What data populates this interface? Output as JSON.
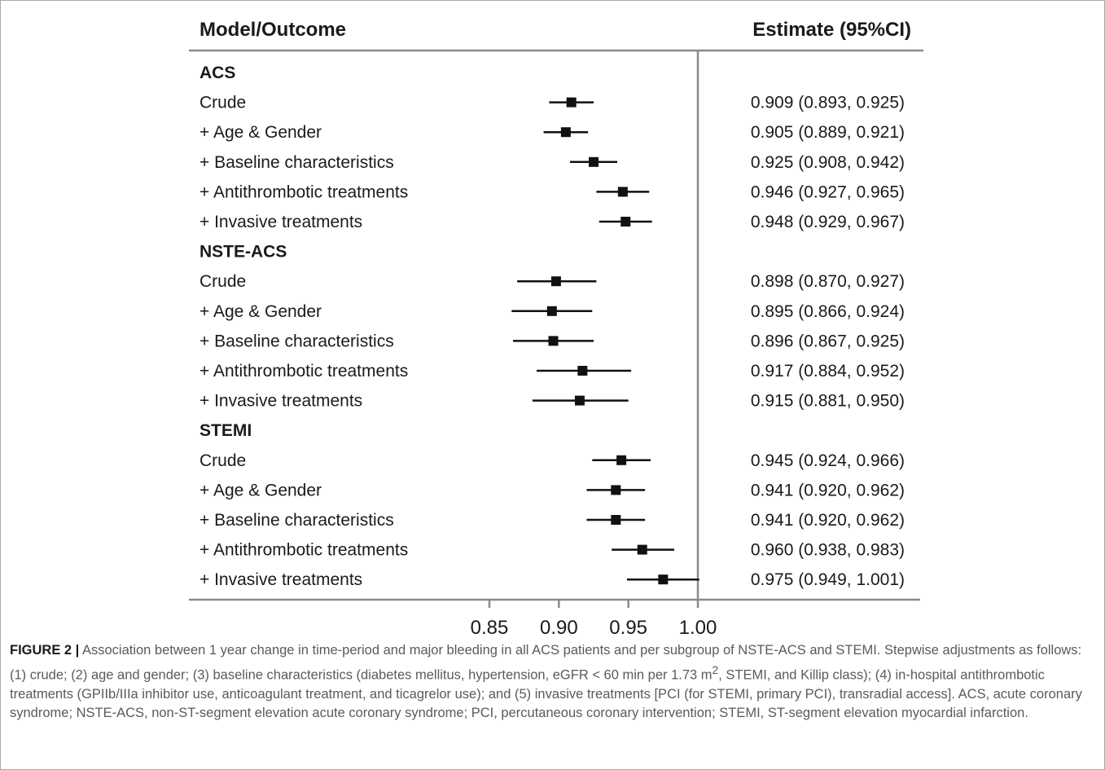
{
  "header": {
    "left": "Model/Outcome",
    "right": "Estimate (95%CI)"
  },
  "chart_data": {
    "type": "forest",
    "reference_line": 1.0,
    "xlim": [
      0.85,
      1.0
    ],
    "xticks": [
      "0.85",
      "0.90",
      "0.95",
      "1.00"
    ],
    "groups": [
      {
        "name": "ACS",
        "rows": [
          {
            "label": "Crude",
            "est": 0.909,
            "lo": 0.893,
            "hi": 0.925,
            "text": "0.909 (0.893, 0.925)"
          },
          {
            "label": "+ Age & Gender",
            "est": 0.905,
            "lo": 0.889,
            "hi": 0.921,
            "text": "0.905 (0.889, 0.921)"
          },
          {
            "label": "+ Baseline characteristics",
            "est": 0.925,
            "lo": 0.908,
            "hi": 0.942,
            "text": "0.925 (0.908, 0.942)"
          },
          {
            "label": "+ Antithrombotic treatments",
            "est": 0.946,
            "lo": 0.927,
            "hi": 0.965,
            "text": "0.946 (0.927, 0.965)"
          },
          {
            "label": "+ Invasive treatments",
            "est": 0.948,
            "lo": 0.929,
            "hi": 0.967,
            "text": "0.948 (0.929, 0.967)"
          }
        ]
      },
      {
        "name": "NSTE-ACS",
        "rows": [
          {
            "label": "Crude",
            "est": 0.898,
            "lo": 0.87,
            "hi": 0.927,
            "text": "0.898 (0.870, 0.927)"
          },
          {
            "label": "+ Age & Gender",
            "est": 0.895,
            "lo": 0.866,
            "hi": 0.924,
            "text": "0.895 (0.866, 0.924)"
          },
          {
            "label": "+ Baseline characteristics",
            "est": 0.896,
            "lo": 0.867,
            "hi": 0.925,
            "text": "0.896 (0.867, 0.925)"
          },
          {
            "label": "+ Antithrombotic treatments",
            "est": 0.917,
            "lo": 0.884,
            "hi": 0.952,
            "text": "0.917 (0.884, 0.952)"
          },
          {
            "label": "+ Invasive treatments",
            "est": 0.915,
            "lo": 0.881,
            "hi": 0.95,
            "text": "0.915 (0.881, 0.950)"
          }
        ]
      },
      {
        "name": "STEMI",
        "rows": [
          {
            "label": "Crude",
            "est": 0.945,
            "lo": 0.924,
            "hi": 0.966,
            "text": "0.945 (0.924, 0.966)"
          },
          {
            "label": "+ Age & Gender",
            "est": 0.941,
            "lo": 0.92,
            "hi": 0.962,
            "text": "0.941 (0.920, 0.962)"
          },
          {
            "label": "+ Baseline characteristics",
            "est": 0.941,
            "lo": 0.92,
            "hi": 0.962,
            "text": "0.941 (0.920, 0.962)"
          },
          {
            "label": "+ Antithrombotic treatments",
            "est": 0.96,
            "lo": 0.938,
            "hi": 0.983,
            "text": "0.960 (0.938, 0.983)"
          },
          {
            "label": "+ Invasive treatments",
            "est": 0.975,
            "lo": 0.949,
            "hi": 1.001,
            "text": "0.975 (0.949, 1.001)"
          }
        ]
      }
    ]
  },
  "caption": {
    "label": "FIGURE 2 |",
    "text_before_sup": " Association between 1 year change in time-period and major bleeding in all ACS patients and per subgroup of NSTE-ACS and STEMI. Stepwise adjustments as follows: (1) crude; (2) age and gender; (3) baseline characteristics (diabetes mellitus, hypertension, eGFR < 60 min per 1.73 m",
    "sup": "2",
    "text_after_sup": ", STEMI, and Killip class); (4) in-hospital antithrombotic treatments (GPIIb/IIIa inhibitor use, anticoagulant treatment, and ticagrelor use); and (5) invasive treatments [PCI (for STEMI, primary PCI), transradial access]. ACS, acute coronary syndrome; NSTE-ACS, non-ST-segment elevation acute coronary syndrome; PCI, percutaneous coronary intervention; STEMI, ST-segment elevation myocardial infarction."
  }
}
